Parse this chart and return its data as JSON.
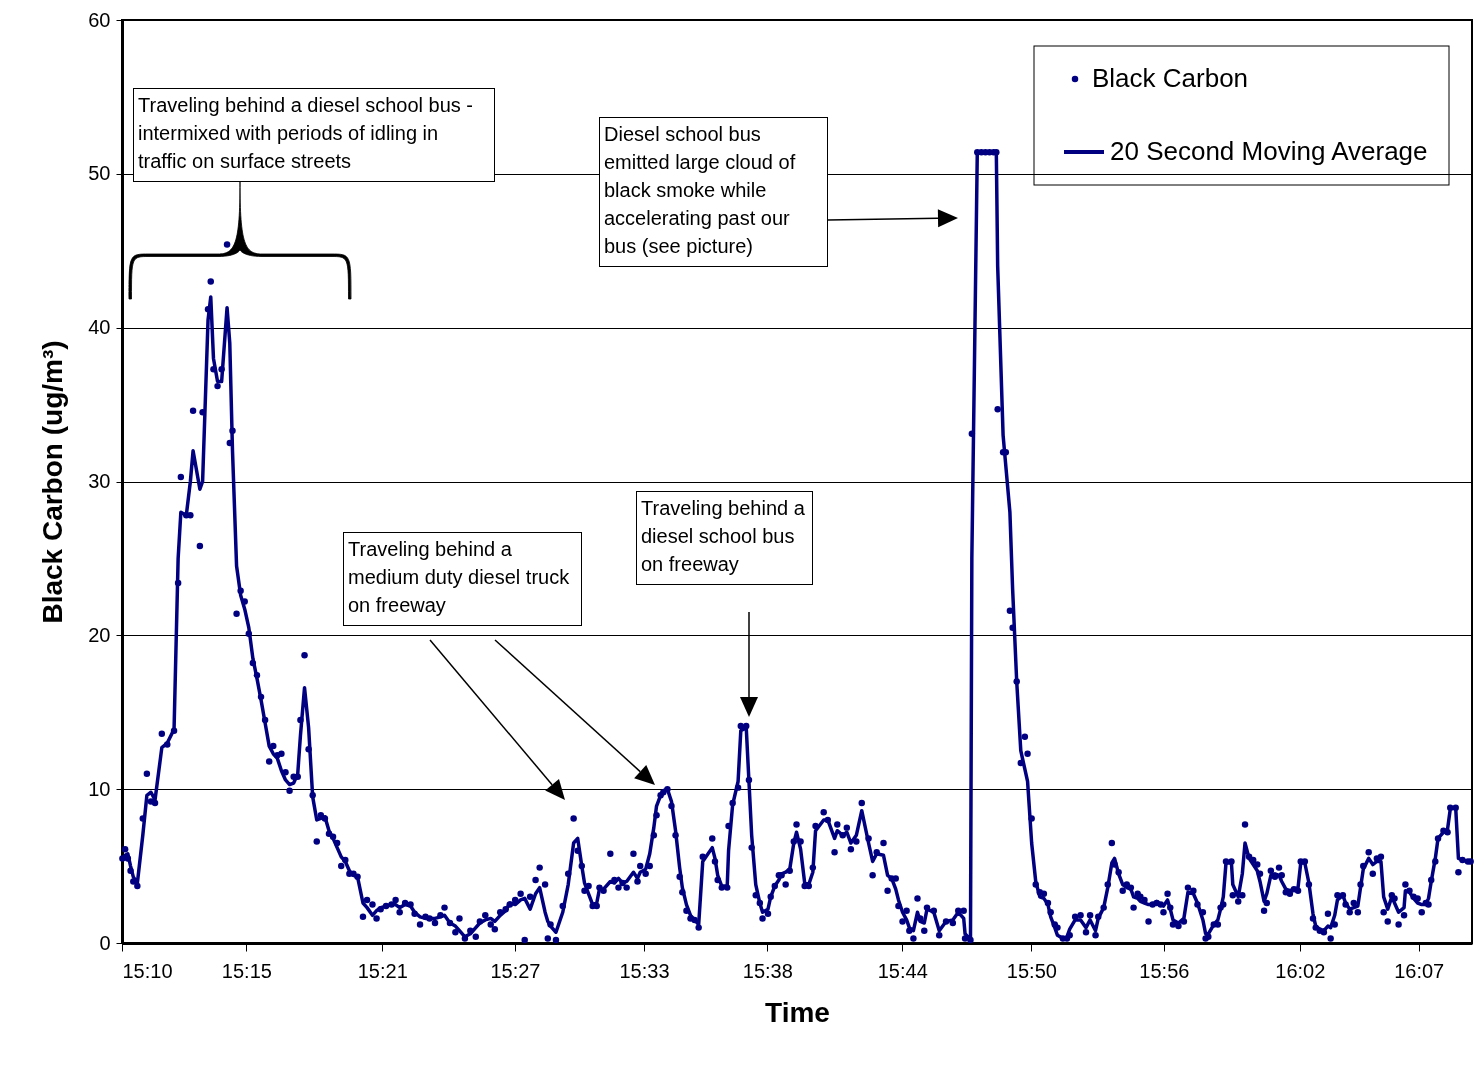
{
  "chart_data": {
    "type": "scatter",
    "xlabel": "Time",
    "ylabel": "Black Carbon (ug/m³)",
    "x": [
      15.167,
      15.169,
      15.171,
      15.173,
      15.175,
      15.178,
      15.182,
      15.185,
      15.188,
      15.191,
      15.196,
      15.2,
      15.205,
      15.208,
      15.21,
      15.214,
      15.217,
      15.219,
      15.224,
      15.226,
      15.23,
      15.232,
      15.234,
      15.237,
      15.24,
      15.244,
      15.246,
      15.248,
      15.251,
      15.254,
      15.257,
      15.26,
      15.263,
      15.266,
      15.269,
      15.272,
      15.275,
      15.278,
      15.281,
      15.284,
      15.287,
      15.29,
      15.293,
      15.296,
      15.298,
      15.301,
      15.304,
      15.307,
      15.31,
      15.313,
      15.316,
      15.319,
      15.322,
      15.325,
      15.328,
      15.331,
      15.334,
      15.337,
      15.34,
      15.344,
      15.347,
      15.351,
      15.354,
      15.357,
      15.361,
      15.365,
      15.368,
      15.371,
      15.375,
      15.379,
      15.382,
      15.386,
      15.39,
      15.393,
      15.397,
      15.401,
      15.404,
      15.408,
      15.412,
      15.415,
      15.419,
      15.423,
      15.427,
      15.43,
      15.434,
      15.438,
      15.441,
      15.445,
      15.449,
      15.452,
      15.456,
      15.46,
      15.463,
      15.467,
      15.471,
      15.474,
      15.478,
      15.48,
      15.482,
      15.486,
      15.491,
      15.495,
      15.499,
      15.502,
      15.505,
      15.507,
      15.51,
      15.513,
      15.516,
      15.518,
      15.521,
      15.526,
      15.529,
      15.532,
      15.535,
      15.538,
      15.543,
      15.546,
      15.548,
      15.552,
      15.555,
      15.558,
      15.56,
      15.563,
      15.565,
      15.568,
      15.571,
      15.574,
      15.577,
      15.579,
      15.582,
      15.585,
      15.588,
      15.591,
      15.594,
      15.601,
      15.603,
      15.605,
      15.608,
      15.612,
      15.613,
      15.616,
      15.62,
      15.622,
      15.626,
      15.628,
      15.63,
      15.633,
      15.636,
      15.638,
      15.642,
      15.644,
      15.647,
      15.65,
      15.652,
      15.655,
      15.658,
      15.661,
      15.663,
      15.666,
      15.669,
      15.672,
      15.675,
      15.677,
      15.683,
      15.686,
      15.691,
      15.693,
      15.697,
      15.7,
      15.703,
      15.707,
      15.711,
      15.716,
      15.719,
      15.722,
      15.727,
      15.73,
      15.733,
      15.736,
      15.738,
      15.741,
      15.744,
      15.746,
      15.749,
      15.752,
      15.754,
      15.757,
      15.759,
      15.764,
      15.768,
      15.773,
      15.778,
      15.782,
      15.786,
      15.787,
      15.791,
      15.792,
      15.796,
      15.799,
      15.802,
      15.805,
      15.808,
      15.81,
      15.811,
      15.815,
      15.817,
      15.82,
      15.822,
      15.825,
      15.828,
      15.831,
      15.833,
      15.836,
      15.839,
      15.842,
      15.845,
      15.848,
      15.85,
      15.853,
      15.855,
      15.859,
      15.862,
      15.864,
      15.868,
      15.872,
      15.876,
      15.879,
      15.883,
      15.885,
      15.889,
      15.892,
      15.895,
      15.897,
      15.9,
      15.903,
      15.906,
      15.909,
      15.911,
      15.914,
      15.916,
      15.919,
      15.922,
      15.925,
      15.928,
      15.931,
      15.933,
      15.936,
      15.938,
      15.94,
      15.944,
      15.948,
      15.951,
      15.955,
      15.958,
      15.962,
      15.964,
      15.966,
      15.97,
      15.973,
      15.975,
      15.977,
      15.979,
      15.983,
      15.984,
      15.988,
      15.991,
      15.993,
      15.996,
      15.999,
      16.002,
      16.004,
      16.007,
      16.009,
      16.012,
      16.015,
      16.018,
      16.02,
      16.023,
      16.026,
      16.029,
      16.032,
      16.034,
      16.037,
      16.04,
      16.043,
      16.045,
      16.048,
      16.051,
      16.054,
      16.056,
      16.059,
      16.061,
      16.065,
      16.067,
      16.07,
      16.073,
      16.076,
      16.078,
      16.08,
      16.084,
      16.087,
      16.09,
      16.093,
      16.095,
      16.098,
      16.101,
      16.103,
      16.106,
      16.11,
      16.111,
      16.114,
      16.117,
      16.12,
      16.123,
      16.126,
      16.128,
      16.13,
      16.133,
      16.135,
      16.139,
      16.142,
      16.144,
      16.148,
      16.15,
      16.153,
      16.157,
      16.159
    ],
    "series": [
      {
        "name": "Black Carbon",
        "marker": "circle",
        "color": "#000080",
        "values": [
          5.5,
          6.1,
          5.5,
          4.7,
          4.0,
          3.7,
          8.1,
          11.0,
          9.2,
          9.1,
          13.6,
          12.9,
          13.8,
          23.4,
          30.3,
          27.8,
          27.8,
          34.6,
          25.8,
          34.5,
          41.2,
          43.0,
          37.3,
          36.2,
          37.3,
          45.4,
          32.5,
          33.3,
          21.4,
          22.9,
          22.2,
          20.1,
          18.2,
          17.4,
          16.0,
          14.5,
          11.8,
          12.8,
          12.2,
          12.3,
          11.1,
          9.9,
          10.8,
          10.8,
          14.5,
          18.7,
          12.6,
          9.6,
          6.6,
          8.3,
          8.1,
          7.1,
          6.9,
          6.5,
          5.0,
          5.4,
          4.5,
          4.5,
          4.3,
          1.7,
          2.8,
          2.5,
          1.6,
          2.2,
          2.4,
          2.5,
          2.8,
          2.0,
          2.6,
          2.5,
          1.9,
          1.2,
          1.7,
          1.6,
          1.3,
          1.8,
          2.3,
          1.3,
          0.7,
          1.6,
          0.3,
          0.8,
          0.4,
          1.4,
          1.8,
          1.2,
          0.9,
          2.0,
          2.2,
          2.5,
          2.8,
          3.2,
          0.2,
          3.0,
          4.1,
          4.9,
          3.8,
          0.3,
          1.2,
          0.2,
          2.4,
          4.5,
          8.1,
          6.0,
          5.0,
          3.4,
          3.7,
          2.4,
          2.4,
          3.6,
          3.4,
          5.8,
          4.1,
          3.6,
          3.9,
          3.6,
          5.8,
          4.0,
          5.0,
          4.5,
          5.0,
          7.0,
          8.3,
          9.6,
          9.8,
          10.0,
          8.9,
          7.0,
          4.3,
          3.3,
          2.1,
          1.6,
          1.5,
          1.0,
          5.6,
          6.8,
          5.3,
          4.1,
          3.6,
          3.6,
          7.6,
          9.1,
          10.1,
          14.1,
          14.1,
          10.6,
          6.2,
          3.1,
          2.6,
          1.6,
          1.9,
          3.0,
          3.7,
          4.4,
          4.4,
          3.8,
          4.7,
          6.6,
          7.7,
          6.6,
          3.7,
          3.7,
          4.9,
          7.6,
          8.5,
          8.0,
          5.9,
          7.7,
          7.0,
          7.5,
          6.1,
          6.6,
          9.1,
          6.8,
          4.4,
          5.9,
          6.5,
          3.4,
          4.2,
          4.2,
          2.4,
          1.4,
          2.1,
          0.8,
          0.3,
          2.9,
          1.6,
          0.8,
          2.3,
          2.1,
          0.5,
          1.4,
          1.3,
          2.1,
          2.1,
          0.3,
          0.2,
          33.1,
          51.4,
          51.4,
          51.4,
          51.4,
          51.4,
          51.4,
          34.7,
          31.9,
          31.9,
          21.6,
          20.5,
          17.0,
          11.7,
          13.4,
          12.3,
          8.1,
          3.8,
          3.3,
          3.2,
          2.6,
          2.0,
          1.2,
          1.0,
          0.3,
          0.3,
          0.5,
          1.7,
          1.8,
          0.7,
          1.8,
          0.5,
          1.7,
          2.3,
          3.8,
          6.5,
          5.1,
          4.6,
          3.4,
          3.8,
          3.6,
          2.3,
          3.2,
          3.0,
          2.8,
          1.4,
          2.5,
          2.6,
          2.5,
          2.0,
          3.2,
          2.3,
          1.2,
          1.1,
          1.4,
          3.6,
          3.4,
          2.5,
          2.0,
          0.3,
          0.4,
          1.2,
          1.2,
          2.3,
          2.5,
          5.3,
          5.3,
          3.1,
          2.7,
          3.1,
          7.7,
          5.6,
          5.4,
          5.1,
          4.5,
          2.1,
          2.6,
          4.7,
          4.3,
          4.9,
          4.4,
          3.3,
          3.2,
          3.5,
          3.4,
          5.3,
          5.3,
          3.8,
          1.6,
          1.0,
          0.8,
          0.7,
          1.9,
          0.3,
          1.2,
          3.1,
          3.1,
          2.5,
          2.0,
          2.6,
          2.0,
          3.8,
          5.0,
          5.9,
          4.5,
          5.5,
          5.6,
          2.0,
          1.4,
          3.1,
          2.9,
          1.2,
          1.8,
          3.8,
          3.4,
          3.0,
          2.9,
          2.0,
          2.6,
          2.5,
          4.1,
          5.3,
          6.8,
          7.3,
          7.2,
          8.8,
          8.8,
          4.6,
          5.4,
          5.3,
          5.3
        ]
      },
      {
        "name": "20 Second Moving Average",
        "type": "line",
        "color": "#000080",
        "values": [
          5.5,
          5.7,
          5.8,
          5.0,
          4.3,
          3.9,
          7.0,
          9.6,
          9.8,
          9.3,
          12.7,
          13.0,
          13.9,
          25.0,
          28.0,
          27.8,
          30.0,
          32.0,
          29.5,
          30.0,
          40.5,
          42.0,
          38.0,
          36.5,
          36.5,
          41.3,
          39.0,
          32.0,
          24.5,
          22.6,
          21.7,
          20.5,
          18.5,
          17.2,
          15.8,
          14.3,
          12.8,
          12.3,
          12.0,
          11.2,
          10.6,
          10.3,
          10.4,
          11.0,
          13.5,
          16.6,
          14.0,
          9.5,
          8.0,
          8.1,
          8.2,
          7.3,
          6.8,
          6.2,
          5.6,
          5.3,
          4.7,
          4.4,
          4.3,
          2.6,
          2.3,
          1.8,
          2.1,
          2.3,
          2.4,
          2.5,
          2.5,
          2.3,
          2.5,
          2.4,
          2.0,
          1.7,
          1.6,
          1.6,
          1.6,
          1.7,
          1.8,
          1.3,
          1.1,
          0.8,
          0.4,
          0.6,
          1.0,
          1.3,
          1.5,
          1.6,
          1.4,
          1.8,
          2.1,
          2.6,
          2.5,
          2.8,
          2.9,
          2.2,
          3.2,
          3.6,
          2.0,
          1.4,
          1.1,
          0.7,
          2.0,
          3.8,
          6.5,
          6.8,
          5.0,
          3.9,
          3.2,
          2.5,
          2.6,
          3.5,
          3.5,
          4.0,
          3.9,
          4.2,
          3.9,
          4.0,
          4.6,
          4.2,
          4.6,
          4.8,
          5.8,
          7.5,
          8.9,
          9.6,
          9.9,
          10.0,
          9.2,
          7.3,
          4.9,
          3.6,
          2.5,
          1.8,
          1.5,
          1.2,
          5.3,
          6.2,
          5.5,
          4.4,
          3.7,
          3.7,
          6.0,
          9.0,
          10.5,
          13.8,
          14.0,
          10.5,
          7.0,
          3.8,
          2.6,
          2.0,
          2.2,
          3.0,
          3.7,
          4.1,
          4.5,
          4.6,
          4.8,
          6.5,
          7.2,
          6.1,
          3.9,
          3.8,
          4.6,
          7.3,
          8.0,
          8.0,
          6.8,
          7.3,
          7.0,
          7.2,
          6.5,
          7.0,
          8.6,
          6.5,
          5.3,
          5.8,
          5.7,
          4.4,
          4.2,
          3.5,
          2.8,
          2.0,
          1.5,
          1.0,
          0.8,
          2.0,
          1.4,
          1.3,
          2.2,
          2.0,
          0.8,
          1.4,
          1.5,
          2.0,
          1.6,
          0.6,
          0.2,
          25.0,
          51.4,
          51.4,
          51.4,
          51.4,
          51.4,
          51.4,
          44.0,
          33.0,
          31.0,
          28.0,
          23.0,
          17.0,
          12.5,
          11.3,
          10.5,
          6.5,
          4.0,
          3.0,
          2.9,
          2.5,
          1.7,
          1.0,
          0.5,
          0.3,
          0.4,
          0.9,
          1.5,
          1.5,
          1.0,
          1.5,
          0.8,
          1.6,
          2.3,
          3.6,
          5.2,
          5.5,
          4.5,
          3.8,
          3.6,
          3.5,
          3.0,
          2.9,
          2.7,
          2.6,
          2.5,
          2.5,
          2.7,
          2.5,
          2.4,
          2.8,
          2.2,
          1.5,
          1.3,
          1.6,
          3.3,
          3.2,
          2.6,
          1.5,
          0.6,
          0.6,
          1.2,
          1.5,
          2.2,
          3.0,
          5.2,
          5.2,
          3.8,
          3.0,
          4.5,
          6.5,
          5.5,
          5.1,
          4.7,
          4.0,
          2.7,
          3.2,
          4.4,
          4.5,
          4.4,
          4.0,
          3.5,
          3.4,
          3.5,
          3.6,
          5.2,
          5.2,
          3.9,
          1.9,
          1.1,
          0.9,
          0.8,
          1.1,
          1.0,
          1.8,
          2.8,
          3.1,
          2.6,
          2.2,
          2.3,
          2.4,
          3.6,
          4.8,
          5.5,
          5.1,
          5.3,
          5.3,
          3.0,
          2.2,
          3.0,
          2.6,
          2.0,
          2.3,
          3.4,
          3.3,
          2.9,
          2.6,
          2.5,
          2.5,
          2.9,
          4.0,
          5.5,
          6.8,
          7.2,
          7.4,
          8.7,
          8.8,
          5.5,
          5.4,
          5.3,
          5.3
        ]
      }
    ],
    "xlim": [
      15.1667,
      16.16
    ],
    "xticks": [
      {
        "value": 15.1667,
        "label": "15:10"
      },
      {
        "value": 15.2582,
        "label": "15:15"
      },
      {
        "value": 15.3582,
        "label": "15:21"
      },
      {
        "value": 15.4558,
        "label": "15:27"
      },
      {
        "value": 15.5508,
        "label": "15:33"
      },
      {
        "value": 15.6415,
        "label": "15:38"
      },
      {
        "value": 15.7408,
        "label": "15:44"
      },
      {
        "value": 15.8358,
        "label": "15:50"
      },
      {
        "value": 15.9333,
        "label": "15:56"
      },
      {
        "value": 16.0333,
        "label": "16:02"
      },
      {
        "value": 16.1208,
        "label": "16:07"
      }
    ],
    "ylim": [
      0,
      60
    ],
    "yticks": [
      0,
      10,
      20,
      30,
      40,
      50,
      60
    ],
    "grid": "y",
    "legend": "top right",
    "annotations": [
      "Traveling behind a diesel school bus - intermixed with periods of idling in traffic on surface streets",
      "Diesel school bus emitted large cloud of black smoke while accelerating past our bus (see picture)",
      "Traveling behind a medium duty diesel truck on freeway",
      "Traveling behind a diesel school bus on freeway"
    ]
  }
}
